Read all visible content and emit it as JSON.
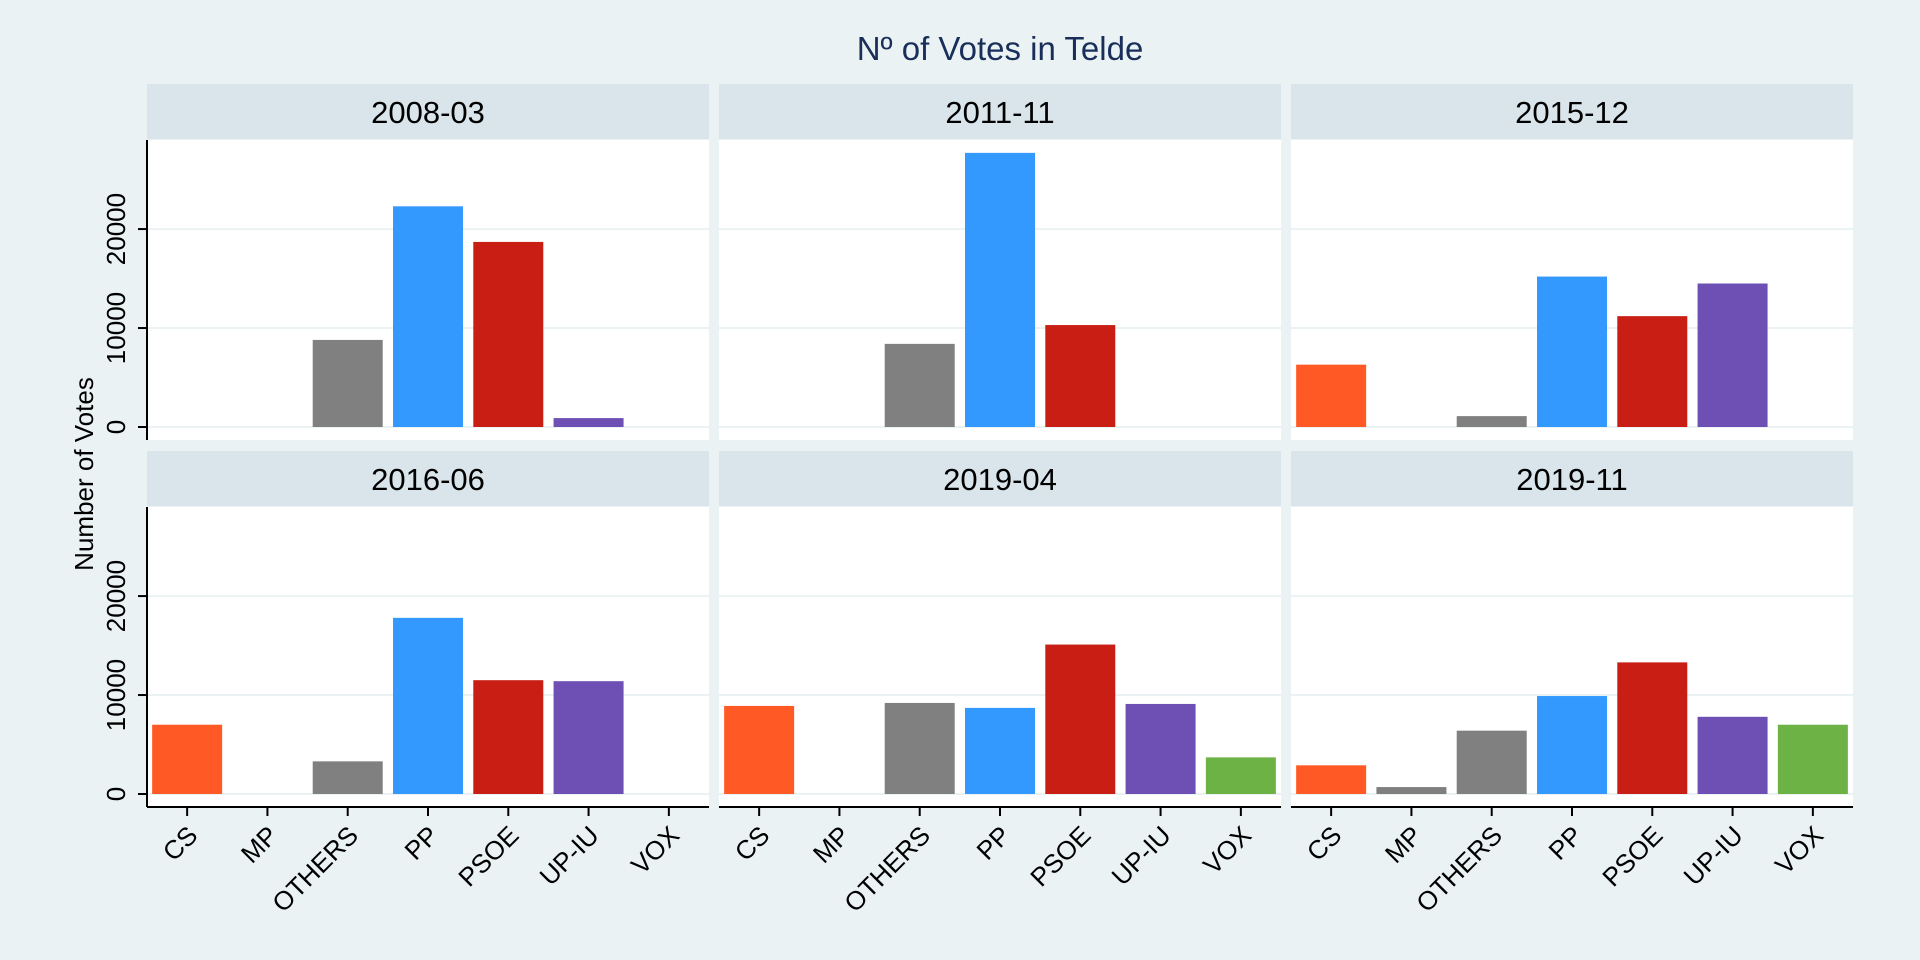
{
  "chart_data": {
    "type": "bar",
    "title": "Nº of Votes in Telde",
    "xlabel": "",
    "ylabel": "Number of Votes",
    "ylim": [
      0,
      29000
    ],
    "yticks": [
      0,
      10000,
      20000
    ],
    "grid": true,
    "legend": "none",
    "categories": [
      "CS",
      "MP",
      "OTHERS",
      "PP",
      "PSOE",
      "UP-IU",
      "VOX"
    ],
    "colors": {
      "CS": "#ff5a26",
      "MP": "#7f7f7f",
      "OTHERS": "#808080",
      "PP": "#3399ff",
      "PSOE": "#c81e14",
      "UP-IU": "#6e50b4",
      "VOX": "#6cb245"
    },
    "panels": [
      {
        "label": "2008-03",
        "values": [
          null,
          null,
          8800,
          22300,
          18700,
          900,
          null
        ]
      },
      {
        "label": "2011-11",
        "values": [
          null,
          null,
          8400,
          27700,
          10300,
          null,
          null
        ]
      },
      {
        "label": "2015-12",
        "values": [
          6300,
          null,
          1100,
          15200,
          11200,
          14500,
          null
        ]
      },
      {
        "label": "2016-06",
        "values": [
          7000,
          null,
          3300,
          17800,
          11500,
          11400,
          null
        ]
      },
      {
        "label": "2019-04",
        "values": [
          8900,
          null,
          9200,
          8700,
          15100,
          9100,
          3700
        ]
      },
      {
        "label": "2019-11",
        "values": [
          2900,
          700,
          6400,
          9900,
          13300,
          7800,
          7000
        ]
      }
    ]
  }
}
